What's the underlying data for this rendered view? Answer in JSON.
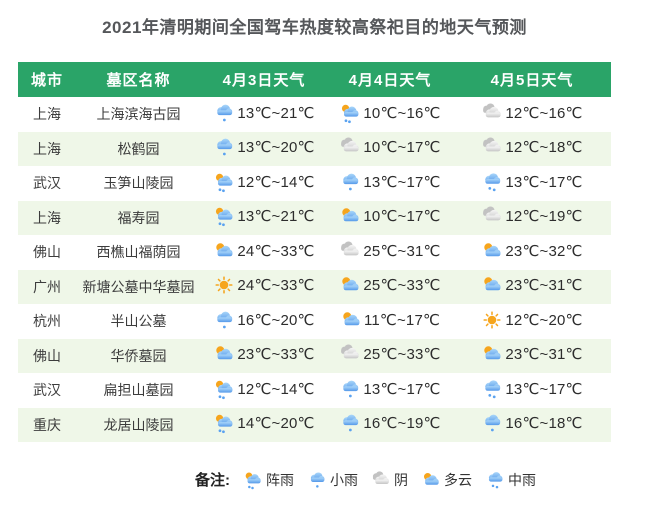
{
  "chart_data": {
    "type": "table",
    "title": "2021年清明期间全国驾车热度较高祭祀目的地天气预测",
    "columns": [
      "城市",
      "墓区名称",
      "4月3日天气",
      "4月4日天气",
      "4月5日天气"
    ],
    "rows": [
      {
        "city": "上海",
        "cemetery": "上海滨海古园",
        "forecast": [
          {
            "condition": "小雨",
            "icon": "light-rain",
            "temp": "13℃~21℃"
          },
          {
            "condition": "阵雨",
            "icon": "shower",
            "temp": "10℃~16℃"
          },
          {
            "condition": "阴",
            "icon": "overcast",
            "temp": "12℃~16℃"
          }
        ]
      },
      {
        "city": "上海",
        "cemetery": "松鹤园",
        "forecast": [
          {
            "condition": "小雨",
            "icon": "light-rain",
            "temp": "13℃~20℃"
          },
          {
            "condition": "阴",
            "icon": "overcast",
            "temp": "10℃~17℃"
          },
          {
            "condition": "阴",
            "icon": "overcast",
            "temp": "12℃~18℃"
          }
        ]
      },
      {
        "city": "武汉",
        "cemetery": "玉笋山陵园",
        "forecast": [
          {
            "condition": "阵雨",
            "icon": "shower",
            "temp": "12℃~14℃"
          },
          {
            "condition": "小雨",
            "icon": "light-rain",
            "temp": "13℃~17℃"
          },
          {
            "condition": "中雨",
            "icon": "moderate-rain",
            "temp": "13℃~17℃"
          }
        ]
      },
      {
        "city": "上海",
        "cemetery": "福寿园",
        "forecast": [
          {
            "condition": "阵雨",
            "icon": "shower",
            "temp": "13℃~21℃"
          },
          {
            "condition": "多云",
            "icon": "cloudy",
            "temp": "10℃~17℃"
          },
          {
            "condition": "阴",
            "icon": "overcast",
            "temp": "12℃~19℃"
          }
        ]
      },
      {
        "city": "佛山",
        "cemetery": "西樵山福荫园",
        "forecast": [
          {
            "condition": "多云",
            "icon": "cloudy",
            "temp": "24℃~33℃"
          },
          {
            "condition": "阴",
            "icon": "overcast",
            "temp": "25℃~31℃"
          },
          {
            "condition": "多云",
            "icon": "cloudy",
            "temp": "23℃~32℃"
          }
        ]
      },
      {
        "city": "广州",
        "cemetery": "新塘公墓中华墓园",
        "forecast": [
          {
            "condition": "晴",
            "icon": "sunny",
            "temp": "24℃~33℃"
          },
          {
            "condition": "多云",
            "icon": "cloudy",
            "temp": "25℃~33℃"
          },
          {
            "condition": "多云",
            "icon": "cloudy",
            "temp": "23℃~31℃"
          }
        ]
      },
      {
        "city": "杭州",
        "cemetery": "半山公墓",
        "forecast": [
          {
            "condition": "小雨",
            "icon": "light-rain",
            "temp": "16℃~20℃"
          },
          {
            "condition": "多云",
            "icon": "cloudy",
            "temp": "11℃~17℃"
          },
          {
            "condition": "晴",
            "icon": "sunny",
            "temp": "12℃~20℃"
          }
        ]
      },
      {
        "city": "佛山",
        "cemetery": "华侨墓园",
        "forecast": [
          {
            "condition": "多云",
            "icon": "cloudy",
            "temp": "23℃~33℃"
          },
          {
            "condition": "阴",
            "icon": "overcast",
            "temp": "25℃~33℃"
          },
          {
            "condition": "多云",
            "icon": "cloudy",
            "temp": "23℃~31℃"
          }
        ]
      },
      {
        "city": "武汉",
        "cemetery": "扁担山墓园",
        "forecast": [
          {
            "condition": "阵雨",
            "icon": "shower",
            "temp": "12℃~14℃"
          },
          {
            "condition": "小雨",
            "icon": "light-rain",
            "temp": "13℃~17℃"
          },
          {
            "condition": "中雨",
            "icon": "moderate-rain",
            "temp": "13℃~17℃"
          }
        ]
      },
      {
        "city": "重庆",
        "cemetery": "龙居山陵园",
        "forecast": [
          {
            "condition": "阵雨",
            "icon": "shower",
            "temp": "14℃~20℃"
          },
          {
            "condition": "小雨",
            "icon": "light-rain",
            "temp": "16℃~19℃"
          },
          {
            "condition": "小雨",
            "icon": "light-rain",
            "temp": "16℃~18℃"
          }
        ]
      }
    ]
  },
  "legend": {
    "label": "备注:",
    "items": [
      {
        "icon": "shower",
        "label": "阵雨"
      },
      {
        "icon": "light-rain",
        "label": "小雨"
      },
      {
        "icon": "overcast",
        "label": "阴"
      },
      {
        "icon": "cloudy",
        "label": "多云"
      },
      {
        "icon": "moderate-rain",
        "label": "中雨"
      }
    ]
  },
  "colors": {
    "header_bg": "#2aa468",
    "header_text": "#ffffff",
    "row_alt_bg": "#eff7e8",
    "title_text": "#55575a",
    "body_text": "#3c3c3c",
    "temp_text": "#2d2d2d",
    "sun": "#f6a51d",
    "cloud_blue_top": "#a9d6fa",
    "cloud_blue_bottom": "#5599e9",
    "cloud_gray": "#c6c6c6",
    "rain_drop": "#5aa2f0"
  }
}
